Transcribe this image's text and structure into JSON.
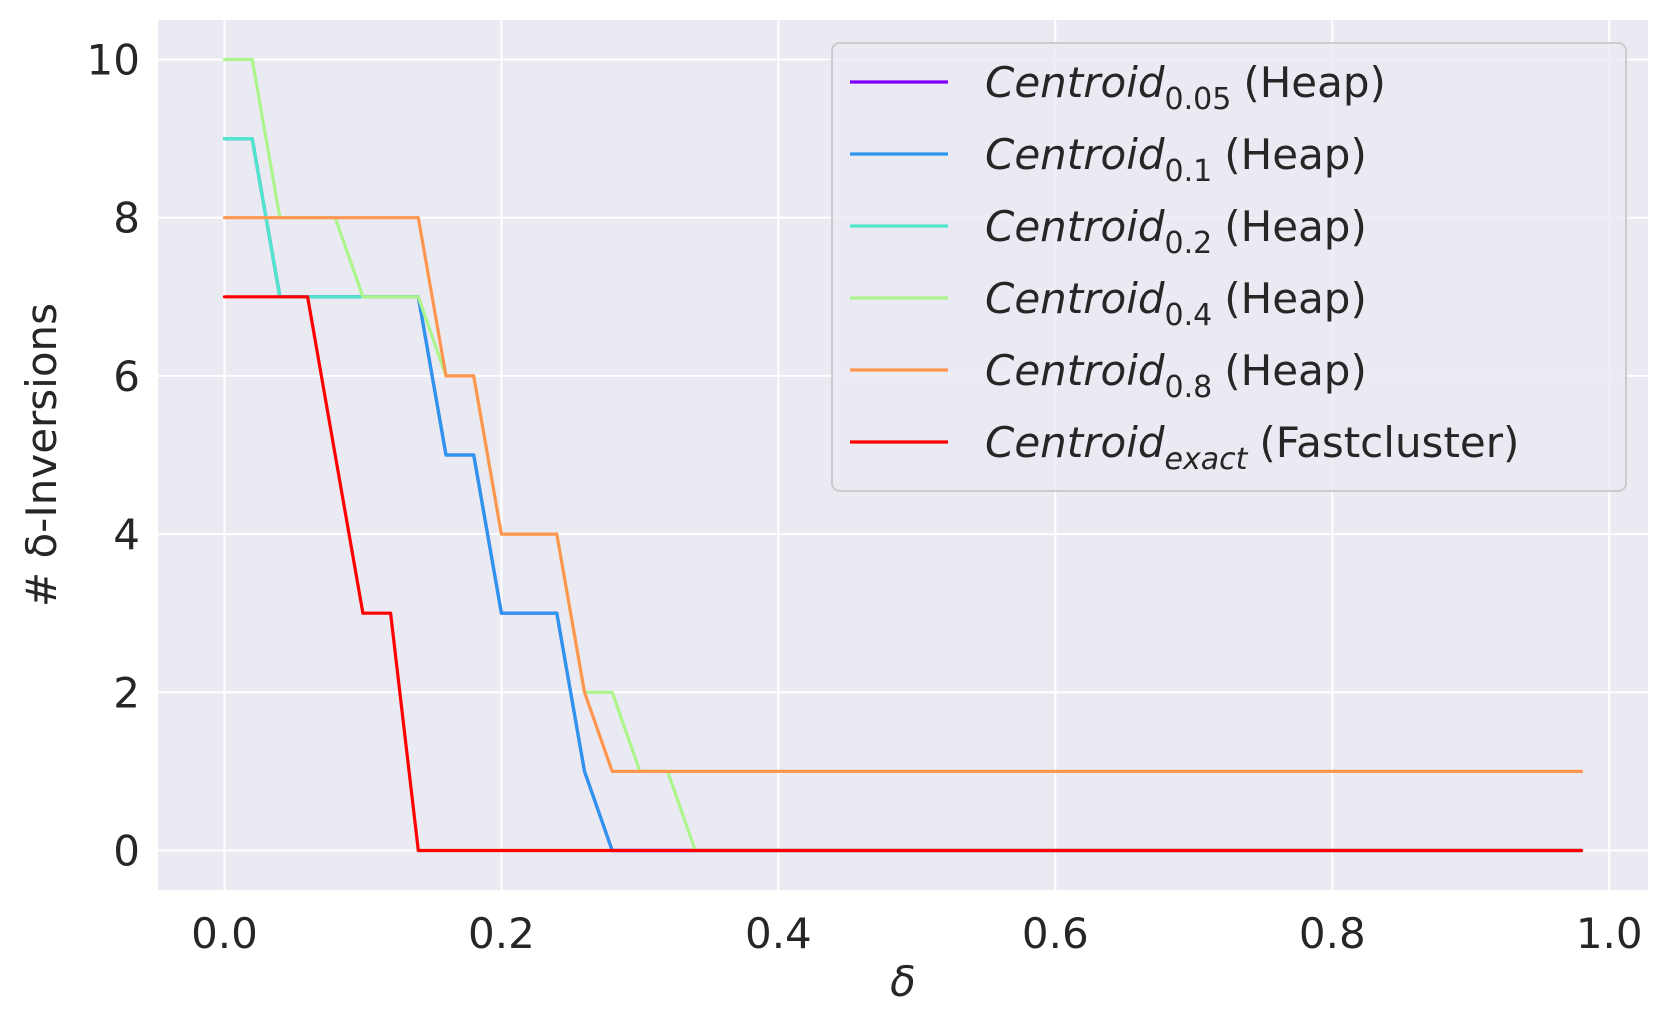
{
  "chart_data": {
    "type": "line",
    "title": "",
    "xlabel": "δ",
    "ylabel": "# δ-Inversions",
    "xlim": [
      -0.048,
      1.028
    ],
    "ylim": [
      -0.5,
      10.5
    ],
    "xticks": [
      0.0,
      0.2,
      0.4,
      0.6,
      0.8,
      1.0
    ],
    "xtick_labels": [
      "0.0",
      "0.2",
      "0.4",
      "0.6",
      "0.8",
      "1.0"
    ],
    "yticks": [
      0,
      2,
      4,
      6,
      8,
      10
    ],
    "ytick_labels": [
      "0",
      "2",
      "4",
      "6",
      "8",
      "10"
    ],
    "grid": true,
    "legend_position": "top-right",
    "background": "#eaeaf2",
    "series": [
      {
        "name": "Centroid",
        "subscript": "0.05",
        "subscript_italic": false,
        "suffix": "(Heap)",
        "color": "#8000ff",
        "x": [
          0.0,
          0.02,
          0.04,
          0.06,
          0.08,
          0.1,
          0.12,
          0.14,
          0.16,
          0.18,
          0.2,
          0.22,
          0.24,
          0.26,
          0.28,
          0.3,
          0.32,
          0.34,
          0.36,
          0.38,
          0.4,
          0.42,
          0.44,
          0.46,
          0.48,
          0.5,
          0.52,
          0.54,
          0.56,
          0.58,
          0.6,
          0.62,
          0.64,
          0.66,
          0.68,
          0.7,
          0.72,
          0.74,
          0.76,
          0.78,
          0.8,
          0.82,
          0.84,
          0.86,
          0.88,
          0.9,
          0.92,
          0.94,
          0.96,
          0.98
        ],
        "y": [
          9,
          9,
          7,
          7,
          7,
          7,
          7,
          7,
          5,
          5,
          3,
          3,
          3,
          1,
          0,
          0,
          0,
          0,
          0,
          0,
          0,
          0,
          0,
          0,
          0,
          0,
          0,
          0,
          0,
          0,
          0,
          0,
          0,
          0,
          0,
          0,
          0,
          0,
          0,
          0,
          0,
          0,
          0,
          0,
          0,
          0,
          0,
          0,
          0,
          0
        ]
      },
      {
        "name": "Centroid",
        "subscript": "0.1",
        "subscript_italic": false,
        "suffix": "(Heap)",
        "color": "#2c96ee",
        "x": [
          0.0,
          0.02,
          0.04,
          0.06,
          0.08,
          0.1,
          0.12,
          0.14,
          0.16,
          0.18,
          0.2,
          0.22,
          0.24,
          0.26,
          0.28,
          0.3,
          0.32,
          0.34,
          0.36,
          0.38,
          0.4,
          0.42,
          0.44,
          0.46,
          0.48,
          0.5,
          0.52,
          0.54,
          0.56,
          0.58,
          0.6,
          0.62,
          0.64,
          0.66,
          0.68,
          0.7,
          0.72,
          0.74,
          0.76,
          0.78,
          0.8,
          0.82,
          0.84,
          0.86,
          0.88,
          0.9,
          0.92,
          0.94,
          0.96,
          0.98
        ],
        "y": [
          9,
          9,
          7,
          7,
          7,
          7,
          7,
          7,
          5,
          5,
          3,
          3,
          3,
          1,
          0,
          0,
          0,
          0,
          0,
          0,
          0,
          0,
          0,
          0,
          0,
          0,
          0,
          0,
          0,
          0,
          0,
          0,
          0,
          0,
          0,
          0,
          0,
          0,
          0,
          0,
          0,
          0,
          0,
          0,
          0,
          0,
          0,
          0,
          0,
          0
        ]
      },
      {
        "name": "Centroid",
        "subscript": "0.2",
        "subscript_italic": false,
        "suffix": "(Heap)",
        "color": "#50e6cc",
        "x": [
          0.0,
          0.02,
          0.04,
          0.06,
          0.08,
          0.1,
          0.12,
          0.14
        ],
        "y": [
          9,
          9,
          7,
          7,
          7,
          7,
          7,
          7
        ]
      },
      {
        "name": "Centroid",
        "subscript": "0.4",
        "subscript_italic": false,
        "suffix": "(Heap)",
        "color": "#acf58c",
        "x": [
          0.0,
          0.02,
          0.04,
          0.06,
          0.08,
          0.1,
          0.12,
          0.14,
          0.16,
          0.18,
          0.2,
          0.22,
          0.24,
          0.26,
          0.28,
          0.3,
          0.32,
          0.34,
          0.36,
          0.38,
          0.4,
          0.42,
          0.44,
          0.46,
          0.48,
          0.5,
          0.52,
          0.54,
          0.56,
          0.58,
          0.6,
          0.62,
          0.64,
          0.66,
          0.68,
          0.7,
          0.72,
          0.74,
          0.76,
          0.78,
          0.8,
          0.82,
          0.84,
          0.86,
          0.88,
          0.9,
          0.92,
          0.94,
          0.96,
          0.98
        ],
        "y": [
          10,
          10,
          8,
          8,
          8,
          7,
          7,
          7,
          6,
          6,
          4,
          4,
          4,
          2,
          2,
          1,
          1,
          0,
          0,
          0,
          0,
          0,
          0,
          0,
          0,
          0,
          0,
          0,
          0,
          0,
          0,
          0,
          0,
          0,
          0,
          0,
          0,
          0,
          0,
          0,
          0,
          0,
          0,
          0,
          0,
          0,
          0,
          0,
          0,
          0
        ]
      },
      {
        "name": "Centroid",
        "subscript": "0.8",
        "subscript_italic": false,
        "suffix": "(Heap)",
        "color": "#ff9650",
        "x": [
          0.0,
          0.02,
          0.04,
          0.06,
          0.08,
          0.1,
          0.12,
          0.14,
          0.16,
          0.18,
          0.2,
          0.22,
          0.24,
          0.26,
          0.28,
          0.3,
          0.32,
          0.34,
          0.36,
          0.38,
          0.4,
          0.42,
          0.44,
          0.46,
          0.48,
          0.5,
          0.52,
          0.54,
          0.56,
          0.58,
          0.6,
          0.62,
          0.64,
          0.66,
          0.68,
          0.7,
          0.72,
          0.74,
          0.76,
          0.78,
          0.8,
          0.82,
          0.84,
          0.86,
          0.88,
          0.9,
          0.92,
          0.94,
          0.96,
          0.98
        ],
        "y": [
          8,
          8,
          8,
          8,
          8,
          8,
          8,
          8,
          6,
          6,
          4,
          4,
          4,
          2,
          1,
          1,
          1,
          1,
          1,
          1,
          1,
          1,
          1,
          1,
          1,
          1,
          1,
          1,
          1,
          1,
          1,
          1,
          1,
          1,
          1,
          1,
          1,
          1,
          1,
          1,
          1,
          1,
          1,
          1,
          1,
          1,
          1,
          1,
          1,
          1
        ]
      },
      {
        "name": "Centroid",
        "subscript": "exact",
        "subscript_italic": true,
        "suffix": "(Fastcluster)",
        "color": "#ff0000",
        "x": [
          0.0,
          0.02,
          0.04,
          0.06,
          0.08,
          0.1,
          0.12,
          0.14,
          0.16,
          0.18,
          0.2,
          0.22,
          0.24,
          0.26,
          0.28,
          0.3,
          0.32,
          0.34,
          0.36,
          0.38,
          0.4,
          0.42,
          0.44,
          0.46,
          0.48,
          0.5,
          0.52,
          0.54,
          0.56,
          0.58,
          0.6,
          0.62,
          0.64,
          0.66,
          0.68,
          0.7,
          0.72,
          0.74,
          0.76,
          0.78,
          0.8,
          0.82,
          0.84,
          0.86,
          0.88,
          0.9,
          0.92,
          0.94,
          0.96,
          0.98
        ],
        "y": [
          7,
          7,
          7,
          7,
          5,
          3,
          3,
          0,
          0,
          0,
          0,
          0,
          0,
          0,
          0,
          0,
          0,
          0,
          0,
          0,
          0,
          0,
          0,
          0,
          0,
          0,
          0,
          0,
          0,
          0,
          0,
          0,
          0,
          0,
          0,
          0,
          0,
          0,
          0,
          0,
          0,
          0,
          0,
          0,
          0,
          0,
          0,
          0,
          0,
          0
        ]
      }
    ]
  }
}
